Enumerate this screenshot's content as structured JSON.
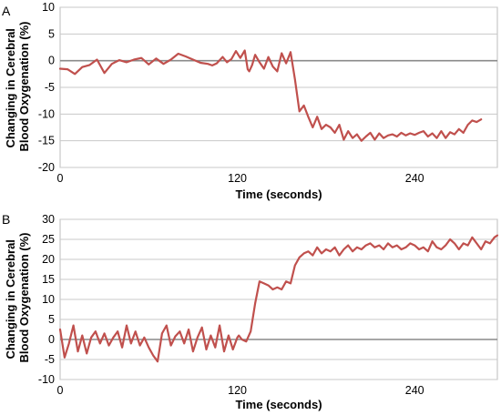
{
  "colors": {
    "series": "#c0504d",
    "grid": "#c8c8c8",
    "zero_line": "#8a8a8a"
  },
  "chart_data": [
    {
      "type": "line",
      "panel": "A",
      "xlabel": "Time (seconds)",
      "ylabel_lines": [
        "Changing in Cerebral",
        "Blood Oxygenation (%)"
      ],
      "xlim": [
        0,
        296
      ],
      "ylim": [
        -20,
        10
      ],
      "xticks": [
        0,
        120,
        240
      ],
      "yticks": [
        -20,
        -15,
        -10,
        -5,
        0,
        5,
        10
      ],
      "grid": true,
      "series": [
        {
          "x": [
            0,
            5,
            10,
            15,
            20,
            25,
            30,
            35,
            40,
            45,
            50,
            55,
            60,
            65,
            70,
            75,
            80,
            85,
            90,
            95,
            100,
            103,
            106,
            110,
            113,
            116,
            119,
            122,
            125,
            127,
            128,
            130,
            132,
            135,
            138,
            141,
            144,
            147,
            150,
            153,
            156,
            159,
            162,
            165,
            168,
            171,
            174,
            177,
            180,
            183,
            186,
            189,
            192,
            195,
            198,
            201,
            204,
            207,
            210,
            213,
            216,
            219,
            222,
            225,
            228,
            231,
            234,
            237,
            240,
            243,
            246,
            249,
            252,
            255,
            258,
            261,
            264,
            267,
            270,
            273,
            276,
            279,
            282,
            285
          ],
          "y": [
            -1.5,
            -1.6,
            -2.5,
            -1.2,
            -0.8,
            0.2,
            -2.3,
            -0.6,
            0.1,
            -0.3,
            0.2,
            0.5,
            -0.7,
            0.4,
            -0.6,
            0.2,
            1.3,
            0.8,
            0.2,
            -0.4,
            -0.6,
            -0.9,
            -0.5,
            0.7,
            -0.3,
            0.3,
            1.8,
            0.5,
            1.9,
            -1.6,
            -2.0,
            -0.8,
            1.1,
            -0.3,
            -1.5,
            0.7,
            -1.1,
            -2.0,
            1.4,
            -0.5,
            1.6,
            -3.5,
            -9.5,
            -8.4,
            -10.5,
            -12.5,
            -10.5,
            -12.8,
            -12.0,
            -12.5,
            -13.5,
            -12.0,
            -14.8,
            -13.2,
            -14.5,
            -13.8,
            -15.0,
            -14.2,
            -13.5,
            -14.8,
            -13.6,
            -14.5,
            -14.0,
            -13.8,
            -14.2,
            -13.5,
            -14.0,
            -13.6,
            -13.9,
            -13.5,
            -13.2,
            -14.2,
            -13.6,
            -14.5,
            -13.2,
            -14.5,
            -13.4,
            -13.8,
            -12.8,
            -13.5,
            -12.0,
            -11.2,
            -11.5,
            -11.0
          ]
        }
      ]
    },
    {
      "type": "line",
      "panel": "B",
      "xlabel": "Time (seconds)",
      "ylabel_lines": [
        "Changing in Cerebral",
        "Blood Oxygenation (%)"
      ],
      "xlim": [
        0,
        296
      ],
      "ylim": [
        -10,
        30
      ],
      "xticks": [
        0,
        120,
        240
      ],
      "yticks": [
        -10,
        -5,
        0,
        5,
        10,
        15,
        20,
        25,
        30
      ],
      "grid": true,
      "series": [
        {
          "x": [
            0,
            3,
            6,
            9,
            12,
            15,
            18,
            21,
            24,
            27,
            30,
            33,
            36,
            39,
            42,
            45,
            48,
            51,
            54,
            57,
            60,
            63,
            66,
            69,
            72,
            75,
            78,
            81,
            84,
            87,
            90,
            93,
            96,
            99,
            102,
            105,
            108,
            111,
            114,
            117,
            120,
            121,
            123,
            126,
            129,
            132,
            135,
            138,
            141,
            144,
            147,
            150,
            153,
            156,
            159,
            162,
            165,
            168,
            171,
            174,
            177,
            180,
            183,
            186,
            189,
            192,
            195,
            198,
            201,
            204,
            207,
            210,
            213,
            216,
            219,
            222,
            225,
            228,
            231,
            234,
            237,
            240,
            243,
            246,
            249,
            252,
            255,
            258,
            261,
            264,
            267,
            270,
            273,
            276,
            279,
            282,
            285,
            288,
            291,
            294,
            296
          ],
          "y": [
            2.5,
            -4.5,
            -1.0,
            3.5,
            -3.0,
            1.0,
            -3.5,
            0.5,
            2.0,
            -1.0,
            1.5,
            -1.5,
            0.5,
            2.0,
            -2.0,
            3.5,
            -1.0,
            2.0,
            -1.5,
            0.5,
            -2.0,
            -4.0,
            -5.5,
            1.5,
            3.5,
            -1.5,
            0.8,
            2.0,
            -1.0,
            2.5,
            -3.0,
            0.5,
            3.0,
            -2.5,
            1.0,
            -2.0,
            3.5,
            -3.0,
            1.0,
            -2.5,
            0.5,
            1.0,
            0.0,
            -0.5,
            2.0,
            9.0,
            14.5,
            14.0,
            13.5,
            12.5,
            13.0,
            12.5,
            14.5,
            14.0,
            18.5,
            20.5,
            21.5,
            22.0,
            21.0,
            23.0,
            21.5,
            22.5,
            22.0,
            23.0,
            21.0,
            22.5,
            23.5,
            22.0,
            23.0,
            22.5,
            23.5,
            24.0,
            23.0,
            23.5,
            22.5,
            24.0,
            23.0,
            23.5,
            22.5,
            23.0,
            24.0,
            23.5,
            22.5,
            23.0,
            22.0,
            24.5,
            23.0,
            22.5,
            23.5,
            25.0,
            24.0,
            22.5,
            24.0,
            23.5,
            25.5,
            24.0,
            22.5,
            24.5,
            24.0,
            25.5,
            26.0
          ]
        }
      ]
    }
  ]
}
